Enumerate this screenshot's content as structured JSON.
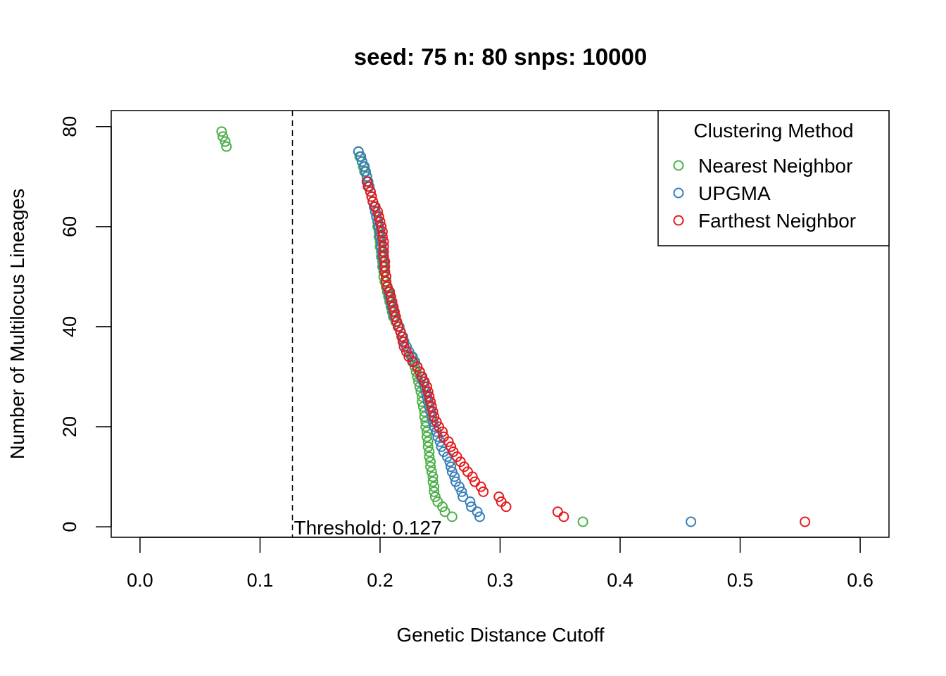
{
  "chart_data": {
    "type": "scatter",
    "title": "seed: 75 n: 80 snps: 10000",
    "xlabel": "Genetic Distance Cutoff",
    "ylabel": "Number of Multilocus Lineages",
    "xlim": [
      -0.024,
      0.624
    ],
    "ylim": [
      -2.1,
      83.2
    ],
    "xticks": [
      0.0,
      0.1,
      0.2,
      0.3,
      0.4,
      0.5,
      0.6
    ],
    "xtick_labels": [
      "0.0",
      "0.1",
      "0.2",
      "0.3",
      "0.4",
      "0.5",
      "0.6"
    ],
    "yticks": [
      0,
      20,
      40,
      60,
      80
    ],
    "ytick_labels": [
      "0",
      "20",
      "40",
      "60",
      "80"
    ],
    "grid": false,
    "legend": {
      "title": "Clustering Method",
      "position": "top-right"
    },
    "threshold": {
      "x": 0.127,
      "label": "Threshold: 0.127",
      "line_style": "dashed"
    },
    "series": [
      {
        "name": "Nearest Neighbor",
        "color": "#4DAF4A",
        "points": [
          [
            0.068,
            79
          ],
          [
            0.069,
            78
          ],
          [
            0.071,
            77
          ],
          [
            0.072,
            76
          ],
          [
            0.182,
            75
          ],
          [
            0.183,
            74
          ],
          [
            0.185,
            73
          ],
          [
            0.186,
            72
          ],
          [
            0.187,
            71
          ],
          [
            0.189,
            70
          ],
          [
            0.19,
            69
          ],
          [
            0.191,
            68
          ],
          [
            0.192,
            67
          ],
          [
            0.193,
            66
          ],
          [
            0.194,
            65
          ],
          [
            0.195,
            64
          ],
          [
            0.196,
            63
          ],
          [
            0.197,
            62
          ],
          [
            0.198,
            61
          ],
          [
            0.198,
            60
          ],
          [
            0.199,
            59
          ],
          [
            0.199,
            58
          ],
          [
            0.2,
            57
          ],
          [
            0.2,
            56
          ],
          [
            0.201,
            55
          ],
          [
            0.201,
            54
          ],
          [
            0.202,
            53
          ],
          [
            0.202,
            52
          ],
          [
            0.203,
            51
          ],
          [
            0.203,
            50
          ],
          [
            0.204,
            49
          ],
          [
            0.205,
            48
          ],
          [
            0.206,
            47
          ],
          [
            0.207,
            46
          ],
          [
            0.208,
            45
          ],
          [
            0.209,
            44
          ],
          [
            0.21,
            43
          ],
          [
            0.211,
            42
          ],
          [
            0.213,
            41
          ],
          [
            0.215,
            40
          ],
          [
            0.217,
            39
          ],
          [
            0.219,
            38
          ],
          [
            0.22,
            37
          ],
          [
            0.222,
            36
          ],
          [
            0.224,
            35
          ],
          [
            0.226,
            34
          ],
          [
            0.228,
            33
          ],
          [
            0.229,
            32
          ],
          [
            0.23,
            31
          ],
          [
            0.231,
            30
          ],
          [
            0.232,
            29
          ],
          [
            0.233,
            28
          ],
          [
            0.234,
            27
          ],
          [
            0.235,
            26
          ],
          [
            0.235,
            25
          ],
          [
            0.236,
            24
          ],
          [
            0.237,
            23
          ],
          [
            0.237,
            22
          ],
          [
            0.238,
            21
          ],
          [
            0.238,
            20
          ],
          [
            0.239,
            19
          ],
          [
            0.239,
            18
          ],
          [
            0.24,
            17
          ],
          [
            0.24,
            16
          ],
          [
            0.241,
            15
          ],
          [
            0.241,
            14
          ],
          [
            0.242,
            13
          ],
          [
            0.242,
            12
          ],
          [
            0.243,
            11
          ],
          [
            0.244,
            10
          ],
          [
            0.244,
            9
          ],
          [
            0.245,
            8
          ],
          [
            0.245,
            7
          ],
          [
            0.246,
            6
          ],
          [
            0.248,
            5
          ],
          [
            0.252,
            4
          ],
          [
            0.254,
            3
          ],
          [
            0.26,
            2
          ],
          [
            0.369,
            1
          ]
        ]
      },
      {
        "name": "UPGMA",
        "color": "#377EB8",
        "points": [
          [
            0.182,
            75
          ],
          [
            0.184,
            74
          ],
          [
            0.185,
            73
          ],
          [
            0.187,
            72
          ],
          [
            0.188,
            71
          ],
          [
            0.189,
            70
          ],
          [
            0.19,
            69
          ],
          [
            0.191,
            68
          ],
          [
            0.192,
            67
          ],
          [
            0.193,
            66
          ],
          [
            0.194,
            65
          ],
          [
            0.195,
            64
          ],
          [
            0.196,
            63
          ],
          [
            0.197,
            62
          ],
          [
            0.198,
            61
          ],
          [
            0.199,
            60
          ],
          [
            0.2,
            59
          ],
          [
            0.2,
            58
          ],
          [
            0.201,
            57
          ],
          [
            0.201,
            56
          ],
          [
            0.202,
            55
          ],
          [
            0.202,
            54
          ],
          [
            0.203,
            53
          ],
          [
            0.203,
            52
          ],
          [
            0.204,
            51
          ],
          [
            0.205,
            50
          ],
          [
            0.205,
            49
          ],
          [
            0.206,
            48
          ],
          [
            0.207,
            47
          ],
          [
            0.208,
            46
          ],
          [
            0.209,
            45
          ],
          [
            0.21,
            44
          ],
          [
            0.211,
            43
          ],
          [
            0.212,
            42
          ],
          [
            0.214,
            41
          ],
          [
            0.216,
            40
          ],
          [
            0.217,
            39
          ],
          [
            0.219,
            38
          ],
          [
            0.22,
            37
          ],
          [
            0.222,
            36
          ],
          [
            0.224,
            35
          ],
          [
            0.227,
            34
          ],
          [
            0.229,
            33
          ],
          [
            0.231,
            32
          ],
          [
            0.233,
            31
          ],
          [
            0.234,
            30
          ],
          [
            0.236,
            29
          ],
          [
            0.237,
            28
          ],
          [
            0.238,
            27
          ],
          [
            0.239,
            26
          ],
          [
            0.24,
            25
          ],
          [
            0.241,
            24
          ],
          [
            0.242,
            23
          ],
          [
            0.243,
            22
          ],
          [
            0.244,
            21
          ],
          [
            0.245,
            20
          ],
          [
            0.247,
            19
          ],
          [
            0.248,
            18
          ],
          [
            0.25,
            17
          ],
          [
            0.251,
            16
          ],
          [
            0.253,
            15
          ],
          [
            0.256,
            14
          ],
          [
            0.258,
            13
          ],
          [
            0.259,
            12
          ],
          [
            0.26,
            11
          ],
          [
            0.262,
            10
          ],
          [
            0.263,
            9
          ],
          [
            0.266,
            8
          ],
          [
            0.268,
            7
          ],
          [
            0.269,
            6
          ],
          [
            0.275,
            5
          ],
          [
            0.276,
            4
          ],
          [
            0.281,
            3
          ],
          [
            0.283,
            2
          ],
          [
            0.459,
            1
          ]
        ]
      },
      {
        "name": "Farthest Neighbor",
        "color": "#E41A1C",
        "points": [
          [
            0.189,
            69
          ],
          [
            0.19,
            68
          ],
          [
            0.192,
            67
          ],
          [
            0.193,
            66
          ],
          [
            0.194,
            65
          ],
          [
            0.196,
            64
          ],
          [
            0.198,
            63
          ],
          [
            0.199,
            62
          ],
          [
            0.2,
            61
          ],
          [
            0.201,
            60
          ],
          [
            0.202,
            59
          ],
          [
            0.202,
            58
          ],
          [
            0.203,
            57
          ],
          [
            0.203,
            56
          ],
          [
            0.203,
            55
          ],
          [
            0.203,
            54
          ],
          [
            0.204,
            53
          ],
          [
            0.204,
            52
          ],
          [
            0.204,
            51
          ],
          [
            0.205,
            50
          ],
          [
            0.205,
            49
          ],
          [
            0.206,
            48
          ],
          [
            0.208,
            47
          ],
          [
            0.209,
            46
          ],
          [
            0.21,
            45
          ],
          [
            0.211,
            44
          ],
          [
            0.212,
            43
          ],
          [
            0.213,
            42
          ],
          [
            0.214,
            41
          ],
          [
            0.215,
            40
          ],
          [
            0.217,
            39
          ],
          [
            0.218,
            38
          ],
          [
            0.219,
            37
          ],
          [
            0.22,
            36
          ],
          [
            0.222,
            35
          ],
          [
            0.224,
            34
          ],
          [
            0.227,
            33
          ],
          [
            0.231,
            32
          ],
          [
            0.233,
            31
          ],
          [
            0.235,
            30
          ],
          [
            0.237,
            29
          ],
          [
            0.239,
            28
          ],
          [
            0.24,
            27
          ],
          [
            0.241,
            26
          ],
          [
            0.242,
            25
          ],
          [
            0.243,
            24
          ],
          [
            0.244,
            23
          ],
          [
            0.245,
            22
          ],
          [
            0.247,
            21
          ],
          [
            0.249,
            20
          ],
          [
            0.252,
            19
          ],
          [
            0.253,
            18
          ],
          [
            0.257,
            17
          ],
          [
            0.259,
            16
          ],
          [
            0.261,
            15
          ],
          [
            0.264,
            14
          ],
          [
            0.267,
            13
          ],
          [
            0.27,
            12
          ],
          [
            0.273,
            11
          ],
          [
            0.277,
            10
          ],
          [
            0.279,
            9
          ],
          [
            0.284,
            8
          ],
          [
            0.286,
            7
          ],
          [
            0.299,
            6
          ],
          [
            0.301,
            5
          ],
          [
            0.305,
            4
          ],
          [
            0.348,
            3
          ],
          [
            0.353,
            2
          ],
          [
            0.554,
            1
          ]
        ]
      }
    ]
  }
}
